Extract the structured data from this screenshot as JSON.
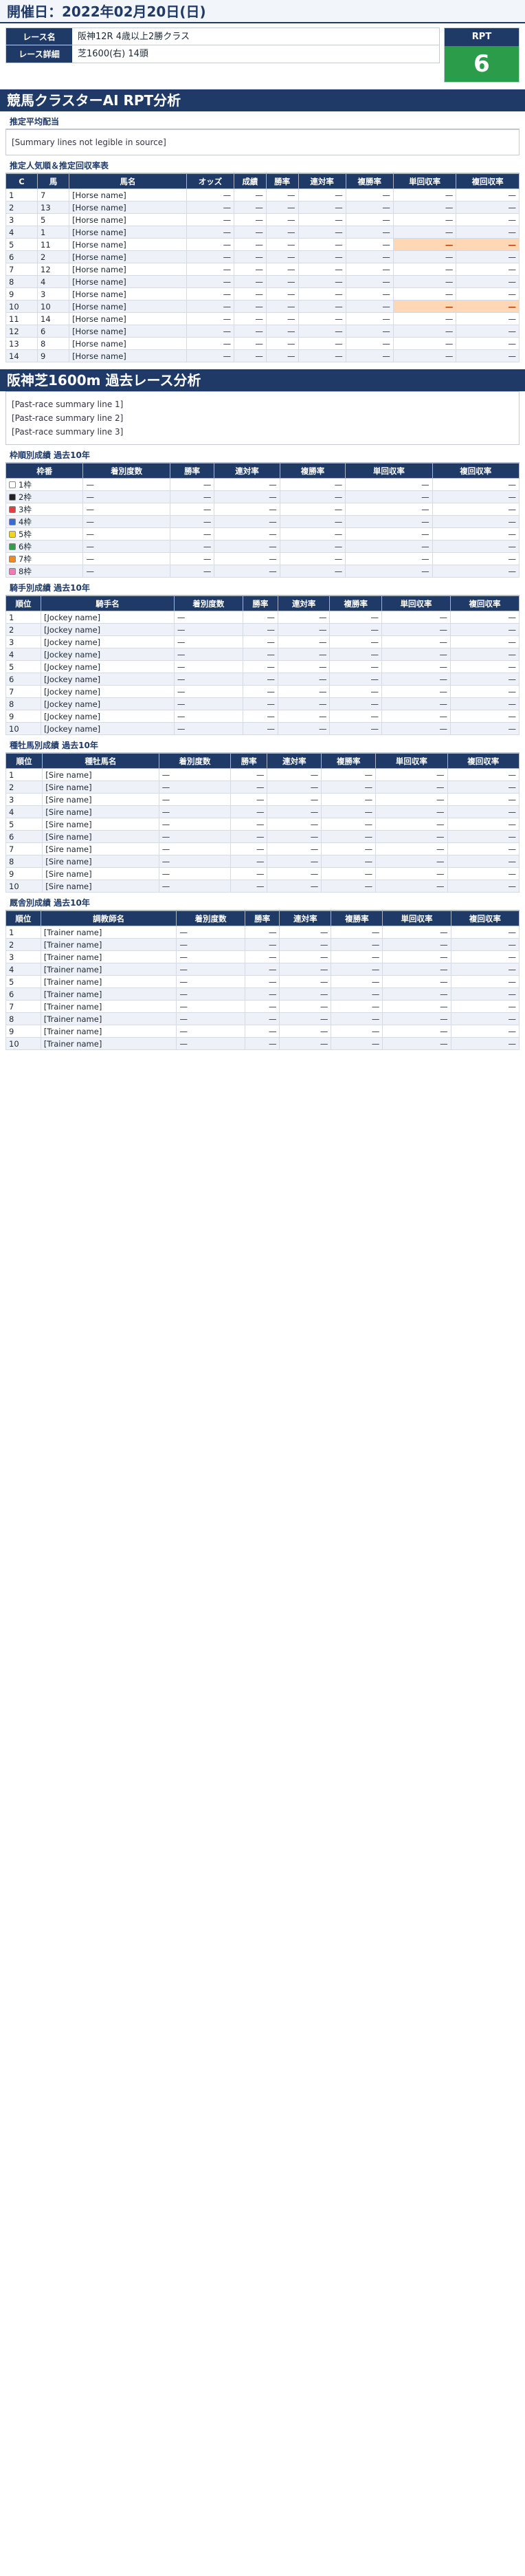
{
  "page_title": "開催日：2022年02月20日(日)",
  "race_info": {
    "rows": [
      {
        "label": "レース名",
        "value": "阪神12R 4歳以上2勝クラス"
      },
      {
        "label": "レース詳細",
        "value": "芝1600(右) 14頭"
      }
    ],
    "rpt_label": "RPT",
    "rpt_value": "6"
  },
  "analysis": {
    "heading": "競馬クラスターAI RPT分析",
    "summary_title": "推定平均配当",
    "summary_lines": [
      "[Summary lines not legible in source]"
    ],
    "table_title": "推定人気順＆推定回収率表",
    "headers": [
      "C",
      "馬",
      "馬名",
      "オッズ",
      "成績",
      "勝率",
      "連対率",
      "複勝率",
      "単回収率",
      "複回収率"
    ],
    "rows": [
      {
        "c": "1",
        "horse": "7",
        "name": "[Horse name]",
        "odds": "—",
        "record": "—",
        "win": "—",
        "place2": "—",
        "show": "—",
        "win_roi": "—",
        "show_roi": "—",
        "hl": false
      },
      {
        "c": "2",
        "horse": "13",
        "name": "[Horse name]",
        "odds": "—",
        "record": "—",
        "win": "—",
        "place2": "—",
        "show": "—",
        "win_roi": "—",
        "show_roi": "—",
        "hl": false
      },
      {
        "c": "3",
        "horse": "5",
        "name": "[Horse name]",
        "odds": "—",
        "record": "—",
        "win": "—",
        "place2": "—",
        "show": "—",
        "win_roi": "—",
        "show_roi": "—",
        "hl": false
      },
      {
        "c": "4",
        "horse": "1",
        "name": "[Horse name]",
        "odds": "—",
        "record": "—",
        "win": "—",
        "place2": "—",
        "show": "—",
        "win_roi": "—",
        "show_roi": "—",
        "hl": false
      },
      {
        "c": "5",
        "horse": "11",
        "name": "[Horse name]",
        "odds": "—",
        "record": "—",
        "win": "—",
        "place2": "—",
        "show": "—",
        "win_roi": "—",
        "show_roi": "—",
        "hl": true
      },
      {
        "c": "6",
        "horse": "2",
        "name": "[Horse name]",
        "odds": "—",
        "record": "—",
        "win": "—",
        "place2": "—",
        "show": "—",
        "win_roi": "—",
        "show_roi": "—",
        "hl": false
      },
      {
        "c": "7",
        "horse": "12",
        "name": "[Horse name]",
        "odds": "—",
        "record": "—",
        "win": "—",
        "place2": "—",
        "show": "—",
        "win_roi": "—",
        "show_roi": "—",
        "hl": false
      },
      {
        "c": "8",
        "horse": "4",
        "name": "[Horse name]",
        "odds": "—",
        "record": "—",
        "win": "—",
        "place2": "—",
        "show": "—",
        "win_roi": "—",
        "show_roi": "—",
        "hl": false
      },
      {
        "c": "9",
        "horse": "3",
        "name": "[Horse name]",
        "odds": "—",
        "record": "—",
        "win": "—",
        "place2": "—",
        "show": "—",
        "win_roi": "—",
        "show_roi": "—",
        "hl": false
      },
      {
        "c": "10",
        "horse": "10",
        "name": "[Horse name]",
        "odds": "—",
        "record": "—",
        "win": "—",
        "place2": "—",
        "show": "—",
        "win_roi": "—",
        "show_roi": "—",
        "hl": true
      },
      {
        "c": "11",
        "horse": "14",
        "name": "[Horse name]",
        "odds": "—",
        "record": "—",
        "win": "—",
        "place2": "—",
        "show": "—",
        "win_roi": "—",
        "show_roi": "—",
        "hl": false
      },
      {
        "c": "12",
        "horse": "6",
        "name": "[Horse name]",
        "odds": "—",
        "record": "—",
        "win": "—",
        "place2": "—",
        "show": "—",
        "win_roi": "—",
        "show_roi": "—",
        "hl": false
      },
      {
        "c": "13",
        "horse": "8",
        "name": "[Horse name]",
        "odds": "—",
        "record": "—",
        "win": "—",
        "place2": "—",
        "show": "—",
        "win_roi": "—",
        "show_roi": "—",
        "hl": false
      },
      {
        "c": "14",
        "horse": "9",
        "name": "[Horse name]",
        "odds": "—",
        "record": "—",
        "win": "—",
        "place2": "—",
        "show": "—",
        "win_roi": "—",
        "show_roi": "—",
        "hl": false
      }
    ]
  },
  "past": {
    "heading": "阪神芝1600m 過去レース分析",
    "meta_lines": [
      "[Past-race summary line 1]",
      "[Past-race summary line 2]",
      "[Past-race summary line 3]"
    ],
    "gate_title": "枠順別成績 過去10年",
    "gate_headers": [
      "枠番",
      "着別度数",
      "勝率",
      "連対率",
      "複勝率",
      "単回収率",
      "複回収率"
    ],
    "gate_rows": [
      {
        "gate": "1枠",
        "color": "#ffffff",
        "record": "—",
        "win": "—",
        "place2": "—",
        "show": "—",
        "win_roi": "—",
        "show_roi": "—"
      },
      {
        "gate": "2枠",
        "color": "#222222",
        "record": "—",
        "win": "—",
        "place2": "—",
        "show": "—",
        "win_roi": "—",
        "show_roi": "—"
      },
      {
        "gate": "3枠",
        "color": "#e0403a",
        "record": "—",
        "win": "—",
        "place2": "—",
        "show": "—",
        "win_roi": "—",
        "show_roi": "—"
      },
      {
        "gate": "4枠",
        "color": "#3a6ad8",
        "record": "—",
        "win": "—",
        "place2": "—",
        "show": "—",
        "win_roi": "—",
        "show_roi": "—"
      },
      {
        "gate": "5枠",
        "color": "#f2d41c",
        "record": "—",
        "win": "—",
        "place2": "—",
        "show": "—",
        "win_roi": "—",
        "show_roi": "—"
      },
      {
        "gate": "6枠",
        "color": "#2e9e48",
        "record": "—",
        "win": "—",
        "place2": "—",
        "show": "—",
        "win_roi": "—",
        "show_roi": "—"
      },
      {
        "gate": "7枠",
        "color": "#f08a1c",
        "record": "—",
        "win": "—",
        "place2": "—",
        "show": "—",
        "win_roi": "—",
        "show_roi": "—"
      },
      {
        "gate": "8枠",
        "color": "#f07ab6",
        "record": "—",
        "win": "—",
        "place2": "—",
        "show": "—",
        "win_roi": "—",
        "show_roi": "—"
      }
    ],
    "jockey_title": "騎手別成績 過去10年",
    "jockey_headers": [
      "順位",
      "騎手名",
      "着別度数",
      "勝率",
      "連対率",
      "複勝率",
      "単回収率",
      "複回収率"
    ],
    "jockey_rows": [
      {
        "rank": "1",
        "name": "[Jockey name]",
        "record": "—",
        "win": "—",
        "place2": "—",
        "show": "—",
        "win_roi": "—",
        "show_roi": "—"
      },
      {
        "rank": "2",
        "name": "[Jockey name]",
        "record": "—",
        "win": "—",
        "place2": "—",
        "show": "—",
        "win_roi": "—",
        "show_roi": "—"
      },
      {
        "rank": "3",
        "name": "[Jockey name]",
        "record": "—",
        "win": "—",
        "place2": "—",
        "show": "—",
        "win_roi": "—",
        "show_roi": "—"
      },
      {
        "rank": "4",
        "name": "[Jockey name]",
        "record": "—",
        "win": "—",
        "place2": "—",
        "show": "—",
        "win_roi": "—",
        "show_roi": "—"
      },
      {
        "rank": "5",
        "name": "[Jockey name]",
        "record": "—",
        "win": "—",
        "place2": "—",
        "show": "—",
        "win_roi": "—",
        "show_roi": "—"
      },
      {
        "rank": "6",
        "name": "[Jockey name]",
        "record": "—",
        "win": "—",
        "place2": "—",
        "show": "—",
        "win_roi": "—",
        "show_roi": "—"
      },
      {
        "rank": "7",
        "name": "[Jockey name]",
        "record": "—",
        "win": "—",
        "place2": "—",
        "show": "—",
        "win_roi": "—",
        "show_roi": "—"
      },
      {
        "rank": "8",
        "name": "[Jockey name]",
        "record": "—",
        "win": "—",
        "place2": "—",
        "show": "—",
        "win_roi": "—",
        "show_roi": "—"
      },
      {
        "rank": "9",
        "name": "[Jockey name]",
        "record": "—",
        "win": "—",
        "place2": "—",
        "show": "—",
        "win_roi": "—",
        "show_roi": "—"
      },
      {
        "rank": "10",
        "name": "[Jockey name]",
        "record": "—",
        "win": "—",
        "place2": "—",
        "show": "—",
        "win_roi": "—",
        "show_roi": "—"
      }
    ],
    "sire_title": "種牡馬別成績 過去10年",
    "sire_headers": [
      "順位",
      "種牡馬名",
      "着別度数",
      "勝率",
      "連対率",
      "複勝率",
      "単回収率",
      "複回収率"
    ],
    "sire_rows": [
      {
        "rank": "1",
        "name": "[Sire name]",
        "record": "—",
        "win": "—",
        "place2": "—",
        "show": "—",
        "win_roi": "—",
        "show_roi": "—"
      },
      {
        "rank": "2",
        "name": "[Sire name]",
        "record": "—",
        "win": "—",
        "place2": "—",
        "show": "—",
        "win_roi": "—",
        "show_roi": "—"
      },
      {
        "rank": "3",
        "name": "[Sire name]",
        "record": "—",
        "win": "—",
        "place2": "—",
        "show": "—",
        "win_roi": "—",
        "show_roi": "—"
      },
      {
        "rank": "4",
        "name": "[Sire name]",
        "record": "—",
        "win": "—",
        "place2": "—",
        "show": "—",
        "win_roi": "—",
        "show_roi": "—"
      },
      {
        "rank": "5",
        "name": "[Sire name]",
        "record": "—",
        "win": "—",
        "place2": "—",
        "show": "—",
        "win_roi": "—",
        "show_roi": "—"
      },
      {
        "rank": "6",
        "name": "[Sire name]",
        "record": "—",
        "win": "—",
        "place2": "—",
        "show": "—",
        "win_roi": "—",
        "show_roi": "—"
      },
      {
        "rank": "7",
        "name": "[Sire name]",
        "record": "—",
        "win": "—",
        "place2": "—",
        "show": "—",
        "win_roi": "—",
        "show_roi": "—"
      },
      {
        "rank": "8",
        "name": "[Sire name]",
        "record": "—",
        "win": "—",
        "place2": "—",
        "show": "—",
        "win_roi": "—",
        "show_roi": "—"
      },
      {
        "rank": "9",
        "name": "[Sire name]",
        "record": "—",
        "win": "—",
        "place2": "—",
        "show": "—",
        "win_roi": "—",
        "show_roi": "—"
      },
      {
        "rank": "10",
        "name": "[Sire name]",
        "record": "—",
        "win": "—",
        "place2": "—",
        "show": "—",
        "win_roi": "—",
        "show_roi": "—"
      }
    ],
    "trainer_title": "厩舎別成績 過去10年",
    "trainer_headers": [
      "順位",
      "調教師名",
      "着別度数",
      "勝率",
      "連対率",
      "複勝率",
      "単回収率",
      "複回収率"
    ],
    "trainer_rows": [
      {
        "rank": "1",
        "name": "[Trainer name]",
        "record": "—",
        "win": "—",
        "place2": "—",
        "show": "—",
        "win_roi": "—",
        "show_roi": "—"
      },
      {
        "rank": "2",
        "name": "[Trainer name]",
        "record": "—",
        "win": "—",
        "place2": "—",
        "show": "—",
        "win_roi": "—",
        "show_roi": "—"
      },
      {
        "rank": "3",
        "name": "[Trainer name]",
        "record": "—",
        "win": "—",
        "place2": "—",
        "show": "—",
        "win_roi": "—",
        "show_roi": "—"
      },
      {
        "rank": "4",
        "name": "[Trainer name]",
        "record": "—",
        "win": "—",
        "place2": "—",
        "show": "—",
        "win_roi": "—",
        "show_roi": "—"
      },
      {
        "rank": "5",
        "name": "[Trainer name]",
        "record": "—",
        "win": "—",
        "place2": "—",
        "show": "—",
        "win_roi": "—",
        "show_roi": "—"
      },
      {
        "rank": "6",
        "name": "[Trainer name]",
        "record": "—",
        "win": "—",
        "place2": "—",
        "show": "—",
        "win_roi": "—",
        "show_roi": "—"
      },
      {
        "rank": "7",
        "name": "[Trainer name]",
        "record": "—",
        "win": "—",
        "place2": "—",
        "show": "—",
        "win_roi": "—",
        "show_roi": "—"
      },
      {
        "rank": "8",
        "name": "[Trainer name]",
        "record": "—",
        "win": "—",
        "place2": "—",
        "show": "—",
        "win_roi": "—",
        "show_roi": "—"
      },
      {
        "rank": "9",
        "name": "[Trainer name]",
        "record": "—",
        "win": "—",
        "place2": "—",
        "show": "—",
        "win_roi": "—",
        "show_roi": "—"
      },
      {
        "rank": "10",
        "name": "[Trainer name]",
        "record": "—",
        "win": "—",
        "place2": "—",
        "show": "—",
        "win_roi": "—",
        "show_roi": "—"
      }
    ]
  }
}
